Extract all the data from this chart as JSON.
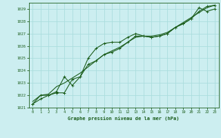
{
  "title": "Graphe pression niveau de la mer (hPa)",
  "bg_color": "#cceef0",
  "grid_color": "#aadddd",
  "line_color": "#1a5c1a",
  "xlim": [
    -0.5,
    23.5
  ],
  "ylim": [
    1021.0,
    1029.5
  ],
  "yticks": [
    1021,
    1022,
    1023,
    1024,
    1025,
    1026,
    1027,
    1028,
    1029
  ],
  "xticks": [
    0,
    1,
    2,
    3,
    4,
    5,
    6,
    7,
    8,
    9,
    10,
    11,
    12,
    13,
    14,
    15,
    16,
    17,
    18,
    19,
    20,
    21,
    22,
    23
  ],
  "series1_x": [
    0,
    1,
    2,
    3,
    4,
    5,
    6,
    7,
    8,
    9,
    10,
    11,
    12,
    13,
    14,
    15,
    16,
    17,
    18,
    19,
    20,
    21,
    22,
    23
  ],
  "series1_y": [
    1021.3,
    1021.7,
    1022.0,
    1022.3,
    1023.5,
    1022.8,
    1023.5,
    1025.0,
    1025.8,
    1026.2,
    1026.3,
    1026.3,
    1026.7,
    1027.0,
    1026.8,
    1026.7,
    1026.8,
    1027.0,
    1027.5,
    1027.8,
    1028.2,
    1029.1,
    1028.8,
    1029.0
  ],
  "series2_x": [
    0,
    1,
    2,
    3,
    4,
    5,
    6,
    7,
    8,
    9,
    10,
    11,
    12,
    13,
    14,
    15,
    16,
    17,
    18,
    19,
    20,
    21,
    22,
    23
  ],
  "series2_y": [
    1021.5,
    1022.0,
    1022.1,
    1022.7,
    1023.0,
    1023.4,
    1023.8,
    1024.3,
    1024.8,
    1025.3,
    1025.6,
    1025.9,
    1026.3,
    1026.7,
    1026.8,
    1026.8,
    1026.9,
    1027.1,
    1027.5,
    1027.9,
    1028.3,
    1028.7,
    1029.1,
    1029.3
  ],
  "series3_x": [
    0,
    1,
    2,
    3,
    4,
    5,
    6,
    7,
    8,
    9,
    10,
    11,
    12,
    13,
    14,
    15,
    16,
    17,
    18,
    19,
    20,
    21,
    22,
    23
  ],
  "series3_y": [
    1021.3,
    1022.0,
    1022.0,
    1022.2,
    1022.2,
    1023.3,
    1023.5,
    1024.5,
    1024.8,
    1025.3,
    1025.5,
    1025.8,
    1026.3,
    1026.8,
    1026.8,
    1026.7,
    1026.8,
    1027.0,
    1027.5,
    1027.8,
    1028.2,
    1028.8,
    1029.2,
    1029.3
  ]
}
